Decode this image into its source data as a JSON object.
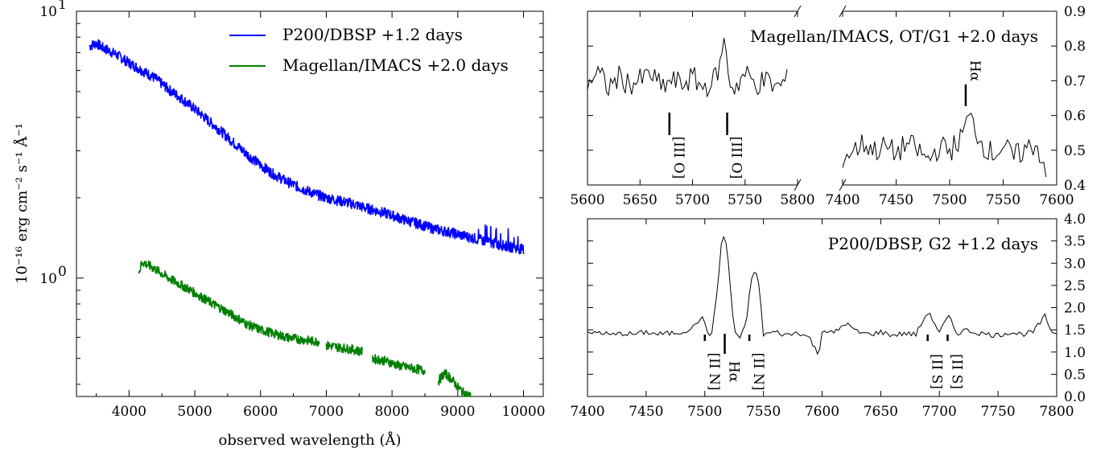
{
  "chart_data": [
    {
      "id": "left",
      "type": "line",
      "xlabel": "observed wavelength (Å)",
      "ylabel": "10⁻¹⁶ erg cm⁻² s⁻¹ Å⁻¹",
      "xlim": [
        3200,
        10300
      ],
      "ylim": [
        0.36,
        10
      ],
      "yscale": "log",
      "xticks": [
        4000,
        5000,
        6000,
        7000,
        8000,
        9000,
        10000
      ],
      "yticks": [
        {
          "value": 10,
          "base": "10",
          "exp": "1"
        },
        {
          "value": 1,
          "base": "10",
          "exp": "0"
        }
      ],
      "legend_position": "top-right",
      "series": [
        {
          "name": "P200/DBSP +1.2 days",
          "color": "#0000ff",
          "x": [
            3400,
            3500,
            3600,
            3800,
            4000,
            4200,
            4400,
            4600,
            4800,
            5000,
            5200,
            5400,
            5600,
            5800,
            6000,
            6200,
            6400,
            6600,
            6800,
            7000,
            7200,
            7400,
            7600,
            7800,
            8000,
            8200,
            8400,
            8600,
            8800,
            9000,
            9200,
            9400,
            9600,
            9800,
            10000
          ],
          "y": [
            7.4,
            7.6,
            7.3,
            6.9,
            6.4,
            6.0,
            5.6,
            5.1,
            4.7,
            4.3,
            3.9,
            3.55,
            3.2,
            2.9,
            2.65,
            2.45,
            2.3,
            2.18,
            2.08,
            2.0,
            1.95,
            1.9,
            1.83,
            1.78,
            1.72,
            1.65,
            1.6,
            1.54,
            1.5,
            1.46,
            1.42,
            1.38,
            1.34,
            1.31,
            1.28
          ]
        },
        {
          "name": "Magellan/IMACS +2.0 days",
          "color": "#007f00",
          "x": [
            4150,
            4200,
            4400,
            4600,
            4800,
            5000,
            5200,
            5400,
            5600,
            5800,
            6000,
            6200,
            6400,
            6600,
            6800,
            6900,
            7000,
            7200,
            7400,
            7550,
            7700,
            7900,
            8100,
            8300,
            8500,
            8700,
            8800,
            8900,
            9000,
            9100,
            9200
          ],
          "y": [
            1.05,
            1.15,
            1.08,
            1.0,
            0.94,
            0.88,
            0.82,
            0.77,
            0.72,
            0.67,
            0.64,
            0.62,
            0.6,
            0.59,
            0.58,
            0.58,
            0.56,
            0.55,
            0.54,
            0.53,
            0.5,
            0.49,
            0.47,
            0.46,
            0.45,
            0.41,
            0.44,
            0.42,
            0.39,
            0.37,
            0.36
          ]
        }
      ]
    },
    {
      "id": "top-right",
      "type": "line",
      "title": "Magellan/IMACS, OT/G1 +2.0 days",
      "broken_x_axis": true,
      "segments": [
        {
          "xlim": [
            5600,
            5800
          ],
          "xticks": [
            5600,
            5650,
            5700,
            5750,
            5800
          ],
          "x": [
            5600,
            5610,
            5620,
            5630,
            5640,
            5650,
            5660,
            5670,
            5680,
            5690,
            5700,
            5710,
            5720,
            5728,
            5730,
            5732,
            5735,
            5740,
            5750,
            5760,
            5770,
            5780,
            5790
          ],
          "y": [
            0.7,
            0.72,
            0.68,
            0.71,
            0.69,
            0.7,
            0.72,
            0.68,
            0.7,
            0.69,
            0.71,
            0.68,
            0.7,
            0.76,
            0.84,
            0.77,
            0.7,
            0.68,
            0.72,
            0.69,
            0.7,
            0.68,
            0.7
          ]
        },
        {
          "xlim": [
            7400,
            7600
          ],
          "xticks": [
            7400,
            7450,
            7500,
            7550,
            7600
          ],
          "x": [
            7400,
            7410,
            7420,
            7430,
            7440,
            7450,
            7460,
            7470,
            7480,
            7490,
            7500,
            7510,
            7515,
            7520,
            7530,
            7540,
            7550,
            7560,
            7570,
            7580,
            7590
          ],
          "y": [
            0.48,
            0.5,
            0.52,
            0.5,
            0.51,
            0.49,
            0.52,
            0.5,
            0.47,
            0.51,
            0.5,
            0.53,
            0.58,
            0.59,
            0.52,
            0.49,
            0.51,
            0.48,
            0.5,
            0.52,
            0.45
          ]
        }
      ],
      "ylim": [
        0.4,
        0.9
      ],
      "yticks": [
        0.4,
        0.5,
        0.6,
        0.7,
        0.8,
        0.9
      ],
      "annotations": [
        {
          "label": "[III O]",
          "x": 5678,
          "segment": 0
        },
        {
          "label": "[III O]",
          "x": 5733,
          "segment": 0
        },
        {
          "label": "Hα",
          "x": 7515,
          "segment": 1
        }
      ]
    },
    {
      "id": "bottom-right",
      "type": "line",
      "title": "P200/DBSP, G2 +1.2 days",
      "xlim": [
        7400,
        7800
      ],
      "ylim": [
        0.0,
        4.0
      ],
      "xticks": [
        7400,
        7450,
        7500,
        7550,
        7600,
        7650,
        7700,
        7750,
        7800
      ],
      "yticks": [
        0.0,
        0.5,
        1.0,
        1.5,
        2.0,
        2.5,
        3.0,
        3.5,
        4.0
      ],
      "x": [
        7400,
        7410,
        7420,
        7430,
        7440,
        7450,
        7460,
        7470,
        7480,
        7490,
        7497,
        7505,
        7510,
        7514,
        7517,
        7520,
        7525,
        7530,
        7535,
        7540,
        7545,
        7550,
        7560,
        7570,
        7580,
        7590,
        7597,
        7600,
        7610,
        7620,
        7630,
        7640,
        7650,
        7660,
        7670,
        7680,
        7690,
        7695,
        7700,
        7708,
        7715,
        7720,
        7730,
        7740,
        7750,
        7760,
        7770,
        7780,
        7790,
        7795,
        7800
      ],
      "y": [
        1.4,
        1.45,
        1.38,
        1.42,
        1.4,
        1.45,
        1.4,
        1.42,
        1.45,
        1.55,
        1.8,
        1.3,
        2.2,
        3.4,
        3.7,
        3.0,
        1.5,
        1.3,
        1.6,
        2.7,
        2.8,
        1.4,
        1.45,
        1.38,
        1.45,
        1.3,
        0.9,
        1.5,
        1.42,
        1.65,
        1.45,
        1.4,
        1.45,
        1.38,
        1.42,
        1.4,
        1.9,
        1.7,
        1.45,
        1.8,
        1.4,
        1.5,
        1.45,
        1.4,
        1.38,
        1.45,
        1.4,
        1.45,
        1.8,
        1.5,
        1.4
      ],
      "annotations": [
        {
          "label": "[II N]",
          "x": 7500
        },
        {
          "label": "Hα",
          "x": 7517
        },
        {
          "label": "[II N]",
          "x": 7538
        },
        {
          "label": "[II S]",
          "x": 7690
        },
        {
          "label": "[II S]",
          "x": 7707
        }
      ]
    }
  ]
}
